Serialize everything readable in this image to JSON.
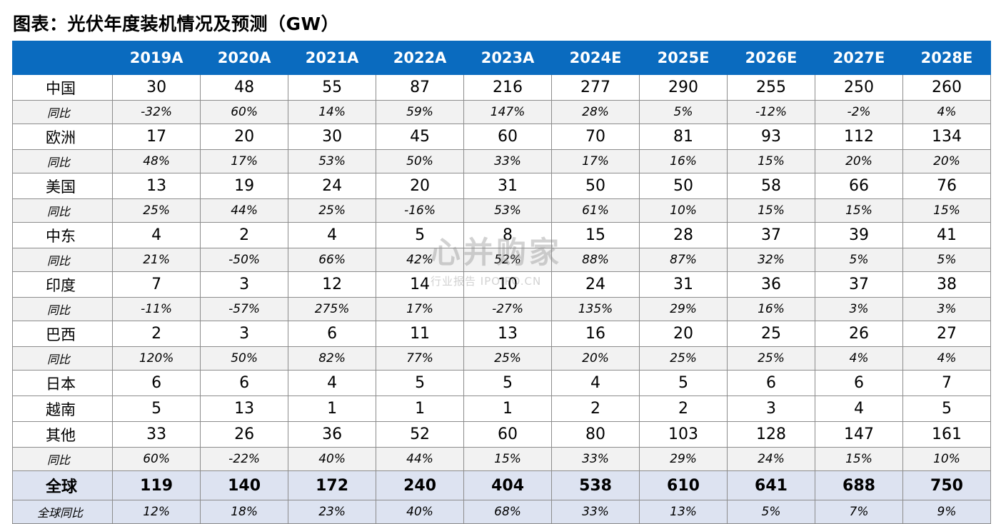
{
  "title": "图表：光伏年度装机情况及预测（GW）",
  "chart_data": {
    "type": "table",
    "columns": [
      "2019A",
      "2020A",
      "2021A",
      "2022A",
      "2023A",
      "2024E",
      "2025E",
      "2026E",
      "2027E",
      "2028E"
    ],
    "rows": [
      {
        "label": "中国",
        "kind": "value",
        "values": [
          "30",
          "48",
          "55",
          "87",
          "216",
          "277",
          "290",
          "255",
          "250",
          "260"
        ]
      },
      {
        "label": "同比",
        "kind": "yoy",
        "values": [
          "-32%",
          "60%",
          "14%",
          "59%",
          "147%",
          "28%",
          "5%",
          "-12%",
          "-2%",
          "4%"
        ]
      },
      {
        "label": "欧洲",
        "kind": "value",
        "values": [
          "17",
          "20",
          "30",
          "45",
          "60",
          "70",
          "81",
          "93",
          "112",
          "134"
        ]
      },
      {
        "label": "同比",
        "kind": "yoy",
        "values": [
          "48%",
          "17%",
          "53%",
          "50%",
          "33%",
          "17%",
          "16%",
          "15%",
          "20%",
          "20%"
        ]
      },
      {
        "label": "美国",
        "kind": "value",
        "values": [
          "13",
          "19",
          "24",
          "20",
          "31",
          "50",
          "50",
          "58",
          "66",
          "76"
        ]
      },
      {
        "label": "同比",
        "kind": "yoy",
        "values": [
          "25%",
          "44%",
          "25%",
          "-16%",
          "53%",
          "61%",
          "10%",
          "15%",
          "15%",
          "15%"
        ]
      },
      {
        "label": "中东",
        "kind": "value",
        "values": [
          "4",
          "2",
          "4",
          "5",
          "8",
          "15",
          "28",
          "37",
          "39",
          "41"
        ]
      },
      {
        "label": "同比",
        "kind": "yoy",
        "values": [
          "21%",
          "-50%",
          "66%",
          "42%",
          "52%",
          "88%",
          "87%",
          "32%",
          "5%",
          "5%"
        ]
      },
      {
        "label": "印度",
        "kind": "value",
        "values": [
          "7",
          "3",
          "12",
          "14",
          "10",
          "24",
          "31",
          "36",
          "37",
          "38"
        ]
      },
      {
        "label": "同比",
        "kind": "yoy",
        "values": [
          "-11%",
          "-57%",
          "275%",
          "17%",
          "-27%",
          "135%",
          "29%",
          "16%",
          "3%",
          "3%"
        ]
      },
      {
        "label": "巴西",
        "kind": "value",
        "values": [
          "2",
          "3",
          "6",
          "11",
          "13",
          "16",
          "20",
          "25",
          "26",
          "27"
        ]
      },
      {
        "label": "同比",
        "kind": "yoy",
        "values": [
          "120%",
          "50%",
          "82%",
          "77%",
          "25%",
          "20%",
          "25%",
          "25%",
          "4%",
          "4%"
        ]
      },
      {
        "label": "日本",
        "kind": "value",
        "values": [
          "6",
          "6",
          "4",
          "5",
          "5",
          "4",
          "5",
          "6",
          "6",
          "7"
        ]
      },
      {
        "label": "越南",
        "kind": "value",
        "values": [
          "5",
          "13",
          "1",
          "1",
          "1",
          "2",
          "2",
          "3",
          "4",
          "5"
        ]
      },
      {
        "label": "其他",
        "kind": "value",
        "values": [
          "33",
          "26",
          "36",
          "52",
          "60",
          "80",
          "103",
          "128",
          "147",
          "161"
        ]
      },
      {
        "label": "同比",
        "kind": "yoy",
        "values": [
          "60%",
          "-22%",
          "40%",
          "44%",
          "15%",
          "33%",
          "29%",
          "24%",
          "15%",
          "10%"
        ]
      },
      {
        "label": "全球",
        "kind": "total",
        "values": [
          "119",
          "140",
          "172",
          "240",
          "404",
          "538",
          "610",
          "641",
          "688",
          "750"
        ]
      },
      {
        "label": "全球同比",
        "kind": "gyoy",
        "values": [
          "12%",
          "18%",
          "23%",
          "40%",
          "68%",
          "33%",
          "13%",
          "5%",
          "7%",
          "9%"
        ]
      }
    ]
  },
  "watermark": {
    "main": "心并购家",
    "sub": "行业报告 IPOIPO.CN"
  }
}
